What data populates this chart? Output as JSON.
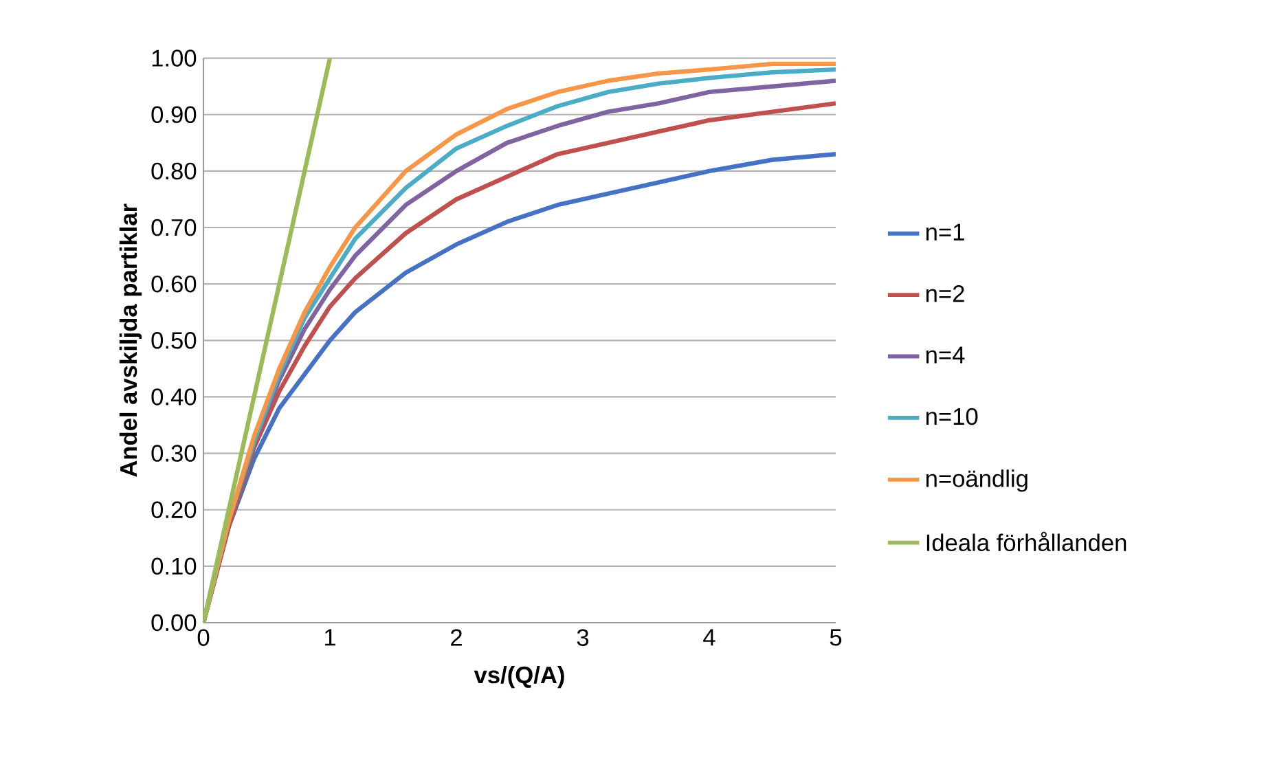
{
  "chart_data": {
    "type": "line",
    "xlabel": "vs/(Q/A)",
    "ylabel": "Andel avskiljda partiklar",
    "xlim": [
      0,
      5
    ],
    "ylim": [
      0,
      1
    ],
    "xticks": [
      0,
      1,
      2,
      3,
      4,
      5
    ],
    "yticks": [
      {
        "value": 0,
        "label": "0.00"
      },
      {
        "value": 0.1,
        "label": "0.10"
      },
      {
        "value": 0.2,
        "label": "0.20"
      },
      {
        "value": 0.3,
        "label": "0.30"
      },
      {
        "value": 0.4,
        "label": "0.40"
      },
      {
        "value": 0.5,
        "label": "0.50"
      },
      {
        "value": 0.6,
        "label": "0.60"
      },
      {
        "value": 0.7,
        "label": "0.70"
      },
      {
        "value": 0.8,
        "label": "0.80"
      },
      {
        "value": 0.9,
        "label": "0.90"
      },
      {
        "value": 1,
        "label": "1.00"
      }
    ],
    "grid": "y",
    "legend": "right",
    "marker": "none",
    "line_style": "solid",
    "x": [
      0,
      0.2,
      0.4,
      0.6,
      0.8,
      1,
      1.2,
      1.6,
      2,
      2.4,
      2.8,
      3.2,
      3.6,
      4,
      4.5,
      5
    ],
    "series": [
      {
        "name": "n=1",
        "color": "#4572c4",
        "values": [
          0,
          0.17,
          0.29,
          0.38,
          0.44,
          0.5,
          0.55,
          0.62,
          0.67,
          0.71,
          0.74,
          0.76,
          0.78,
          0.8,
          0.82,
          0.83
        ]
      },
      {
        "name": "n=2",
        "color": "#c0504d",
        "values": [
          0,
          0.17,
          0.31,
          0.41,
          0.49,
          0.56,
          0.61,
          0.69,
          0.75,
          0.79,
          0.83,
          0.85,
          0.87,
          0.89,
          0.905,
          0.92
        ]
      },
      {
        "name": "n=4",
        "color": "#8064a2",
        "values": [
          0,
          0.18,
          0.32,
          0.43,
          0.52,
          0.59,
          0.65,
          0.74,
          0.8,
          0.85,
          0.88,
          0.905,
          0.92,
          0.94,
          0.95,
          0.96
        ]
      },
      {
        "name": "n=10",
        "color": "#4bacc6",
        "values": [
          0,
          0.18,
          0.32,
          0.44,
          0.54,
          0.61,
          0.68,
          0.77,
          0.84,
          0.88,
          0.915,
          0.94,
          0.955,
          0.965,
          0.975,
          0.98
        ]
      },
      {
        "name": "n=oändlig",
        "color": "#f79646",
        "values": [
          0,
          0.18,
          0.33,
          0.45,
          0.55,
          0.63,
          0.7,
          0.8,
          0.865,
          0.91,
          0.94,
          0.96,
          0.973,
          0.98,
          0.99,
          0.99
        ]
      },
      {
        "name": "Ideala förhållanden",
        "color": "#9bbb59",
        "x": [
          0,
          1
        ],
        "values": [
          0,
          1
        ]
      }
    ]
  }
}
